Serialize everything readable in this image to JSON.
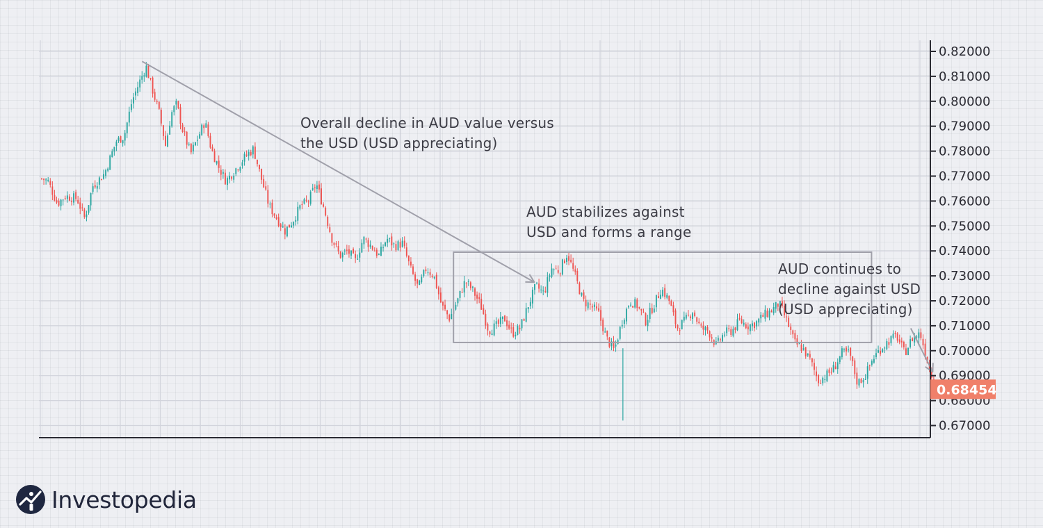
{
  "chart_data": {
    "type": "candlestick",
    "title": "",
    "xlabel": "",
    "ylabel": "",
    "ylim": [
      0.665,
      0.825
    ],
    "y_ticks": [
      "0.82000",
      "0.81000",
      "0.80000",
      "0.79000",
      "0.78000",
      "0.77000",
      "0.76000",
      "0.75000",
      "0.74000",
      "0.73000",
      "0.72000",
      "0.71000",
      "0.70000",
      "0.69000",
      "0.68000",
      "0.67000"
    ],
    "current_price": "0.68454",
    "colors": {
      "up": "#2aa6a0",
      "down": "#ef5350",
      "axis": "#2b2b33",
      "annotation": "#a0a0aa",
      "price_tag": "#f0806a",
      "grid": "#d2d4dc"
    },
    "grid": true,
    "close_path": [
      [
        0.0,
        0.769
      ],
      [
        0.008,
        0.768
      ],
      [
        0.02,
        0.759
      ],
      [
        0.03,
        0.762
      ],
      [
        0.045,
        0.761
      ],
      [
        0.055,
        0.753
      ],
      [
        0.065,
        0.766
      ],
      [
        0.08,
        0.771
      ],
      [
        0.095,
        0.784
      ],
      [
        0.105,
        0.786
      ],
      [
        0.115,
        0.8
      ],
      [
        0.125,
        0.808
      ],
      [
        0.133,
        0.814
      ],
      [
        0.14,
        0.806
      ],
      [
        0.15,
        0.795
      ],
      [
        0.158,
        0.782
      ],
      [
        0.165,
        0.795
      ],
      [
        0.172,
        0.799
      ],
      [
        0.18,
        0.788
      ],
      [
        0.19,
        0.779
      ],
      [
        0.2,
        0.786
      ],
      [
        0.208,
        0.792
      ],
      [
        0.216,
        0.781
      ],
      [
        0.225,
        0.774
      ],
      [
        0.235,
        0.768
      ],
      [
        0.245,
        0.772
      ],
      [
        0.26,
        0.778
      ],
      [
        0.27,
        0.781
      ],
      [
        0.28,
        0.769
      ],
      [
        0.29,
        0.758
      ],
      [
        0.3,
        0.753
      ],
      [
        0.31,
        0.748
      ],
      [
        0.32,
        0.752
      ],
      [
        0.33,
        0.758
      ],
      [
        0.34,
        0.76
      ],
      [
        0.35,
        0.767
      ],
      [
        0.36,
        0.757
      ],
      [
        0.37,
        0.745
      ],
      [
        0.38,
        0.738
      ],
      [
        0.39,
        0.74
      ],
      [
        0.4,
        0.736
      ],
      [
        0.41,
        0.745
      ],
      [
        0.42,
        0.742
      ],
      [
        0.43,
        0.738
      ],
      [
        0.44,
        0.745
      ],
      [
        0.45,
        0.742
      ],
      [
        0.46,
        0.743
      ],
      [
        0.47,
        0.733
      ],
      [
        0.48,
        0.725
      ],
      [
        0.49,
        0.733
      ],
      [
        0.5,
        0.73
      ],
      [
        0.51,
        0.718
      ],
      [
        0.52,
        0.713
      ],
      [
        0.53,
        0.72
      ],
      [
        0.54,
        0.728
      ],
      [
        0.55,
        0.724
      ],
      [
        0.56,
        0.718
      ],
      [
        0.57,
        0.708
      ],
      [
        0.58,
        0.71
      ],
      [
        0.59,
        0.713
      ],
      [
        0.6,
        0.707
      ],
      [
        0.61,
        0.709
      ],
      [
        0.62,
        0.718
      ],
      [
        0.63,
        0.726
      ],
      [
        0.64,
        0.723
      ],
      [
        0.65,
        0.733
      ],
      [
        0.66,
        0.732
      ],
      [
        0.67,
        0.739
      ],
      [
        0.68,
        0.73
      ],
      [
        0.69,
        0.72
      ],
      [
        0.7,
        0.718
      ],
      [
        0.71,
        0.715
      ],
      [
        0.72,
        0.705
      ],
      [
        0.73,
        0.7
      ],
      [
        0.74,
        0.712
      ],
      [
        0.75,
        0.72
      ],
      [
        0.76,
        0.718
      ],
      [
        0.77,
        0.712
      ],
      [
        0.78,
        0.718
      ],
      [
        0.79,
        0.725
      ],
      [
        0.8,
        0.72
      ],
      [
        0.81,
        0.709
      ],
      [
        0.82,
        0.712
      ],
      [
        0.83,
        0.716
      ],
      [
        0.84,
        0.709
      ],
      [
        0.85,
        0.708
      ],
      [
        0.86,
        0.702
      ],
      [
        0.87,
        0.707
      ],
      [
        0.88,
        0.708
      ],
      [
        0.89,
        0.712
      ],
      [
        0.9,
        0.71
      ],
      [
        0.91,
        0.711
      ],
      [
        0.92,
        0.714
      ],
      [
        0.93,
        0.716
      ],
      [
        0.94,
        0.719
      ],
      [
        0.95,
        0.712
      ],
      [
        0.96,
        0.703
      ],
      [
        0.97,
        0.701
      ],
      [
        0.98,
        0.696
      ],
      [
        0.99,
        0.688
      ],
      [
        1.0,
        0.69
      ],
      [
        1.01,
        0.693
      ],
      [
        1.02,
        0.699
      ],
      [
        1.03,
        0.699
      ],
      [
        1.04,
        0.687
      ],
      [
        1.05,
        0.69
      ],
      [
        1.06,
        0.697
      ],
      [
        1.07,
        0.701
      ],
      [
        1.08,
        0.704
      ],
      [
        1.09,
        0.706
      ],
      [
        1.1,
        0.699
      ],
      [
        1.11,
        0.705
      ],
      [
        1.12,
        0.707
      ],
      [
        1.13,
        0.695
      ],
      [
        1.14,
        0.685
      ]
    ],
    "spike": {
      "x": 0.741,
      "low": 0.672
    },
    "trend_line": {
      "from": [
        0.128,
        0.816
      ],
      "to": [
        0.628,
        0.7275
      ]
    },
    "range_box": {
      "x0": 0.525,
      "x1": 1.058,
      "y_top": 0.7395,
      "y_bottom": 0.7033
    },
    "end_arrow": {
      "from": [
        1.108,
        0.709
      ],
      "to": [
        1.136,
        0.6915
      ]
    }
  },
  "annotations": {
    "decline": {
      "line1": "Overall decline in AUD value versus",
      "line2": "the USD (USD appreciating)"
    },
    "range": {
      "line1": "AUD stabilizes against",
      "line2": "USD and forms a range"
    },
    "continue": {
      "line1": "AUD continues to",
      "line2": "decline against USD",
      "line3": "(USD appreciating)"
    }
  },
  "logo": {
    "text": "Investopedia",
    "icon": "investopedia-logo-icon"
  }
}
